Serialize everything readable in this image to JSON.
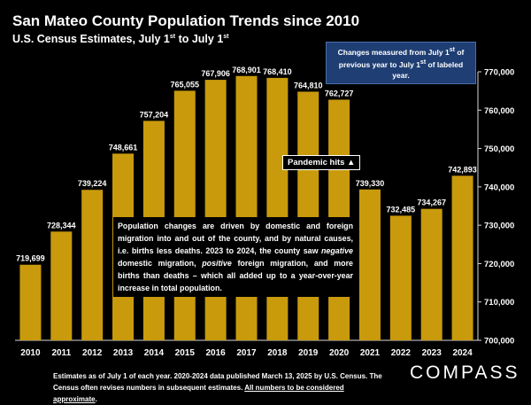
{
  "header": {
    "title": "San Mateo County Population Trends since 2010",
    "subtitle_main": "U.S. Census Estimates, July 1",
    "subtitle_mid": " to July 1",
    "subtitle_sup": "st"
  },
  "note": {
    "line1_a": "Changes measured from July 1",
    "line1_sup": "st",
    "line1_b": " of",
    "line2_a": "previous year to July 1",
    "line2_sup": "st",
    "line2_b": " of labeled year."
  },
  "pandemic_label": "Pandemic hits ▲",
  "explanation": {
    "part1": "Population changes are driven by domestic and foreign migration into and out of the county, and by natural causes, i.e. births less deaths. 2023 to 2024, the county saw ",
    "neg": "negative",
    "part2": " domestic migration, ",
    "pos": "positive",
    "part3": " foreign migration, and more births than deaths – which all added up to a year-over-year increase in total population."
  },
  "footnote": {
    "text": "Estimates as of July 1 of each year. 2020-2024 data published March 13, 2025 by U.S. Census. The Census often revises numbers in subsequent estimates. ",
    "underlined": "All numbers to be considered approximate",
    "end": "."
  },
  "logo": "COMPASS",
  "colors": {
    "bar": "#c89a0c",
    "background": "#000000",
    "note_bg": "#1f3e73"
  },
  "chart_data": {
    "type": "bar",
    "categories": [
      "2010",
      "2011",
      "2012",
      "2013",
      "2014",
      "2015",
      "2016",
      "2017",
      "2018",
      "2019",
      "2020",
      "2021",
      "2022",
      "2023",
      "2024"
    ],
    "values": [
      719699,
      728344,
      739224,
      748661,
      757204,
      765055,
      767906,
      768901,
      768410,
      764810,
      762727,
      739330,
      732485,
      734267,
      742893
    ],
    "labels": [
      "719,699",
      "728,344",
      "739,224",
      "748,661",
      "757,204",
      "765,055",
      "767,906",
      "768,901",
      "768,410",
      "764,810",
      "762,727",
      "739,330",
      "732,485",
      "734,267",
      "742,893"
    ],
    "ylim": [
      700000,
      770000
    ],
    "yticks": [
      700000,
      710000,
      720000,
      730000,
      740000,
      750000,
      760000,
      770000
    ],
    "ytick_labels": [
      "700,000",
      "710,000",
      "720,000",
      "730,000",
      "740,000",
      "750,000",
      "760,000",
      "770,000"
    ],
    "y_axis_side": "right",
    "grid": false
  }
}
